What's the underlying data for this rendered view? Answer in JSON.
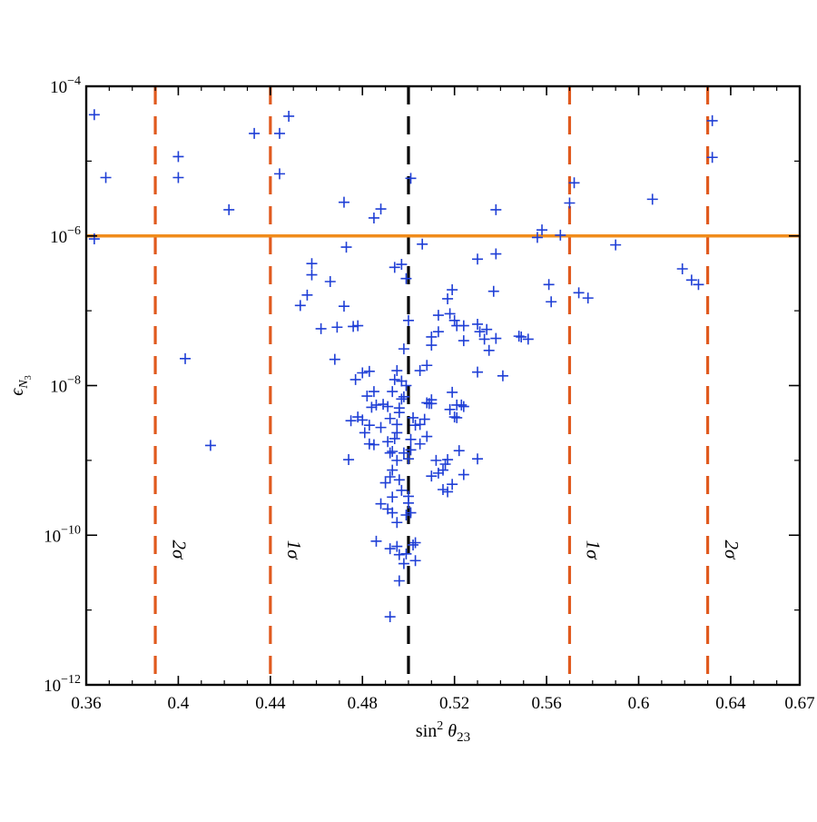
{
  "chart_data": {
    "type": "scatter",
    "title": "",
    "xlabel": "sin² θ23",
    "ylabel": "ϵN3",
    "x_scale": "linear",
    "y_scale": "log",
    "xlim": [
      0.36,
      0.67
    ],
    "ylim": [
      1e-12,
      0.0001
    ],
    "x_ticks": [
      {
        "value": 0.36,
        "label": "0.36"
      },
      {
        "value": 0.4,
        "label": "0.4"
      },
      {
        "value": 0.44,
        "label": "0.44"
      },
      {
        "value": 0.48,
        "label": "0.48"
      },
      {
        "value": 0.52,
        "label": "0.52"
      },
      {
        "value": 0.56,
        "label": "0.56"
      },
      {
        "value": 0.6,
        "label": "0.6"
      },
      {
        "value": 0.64,
        "label": "0.64"
      },
      {
        "value": 0.67,
        "label": "0.67"
      }
    ],
    "y_ticks": [
      {
        "exp": -12,
        "base": "10",
        "sup": "−12"
      },
      {
        "exp": -10,
        "base": "10",
        "sup": "−10"
      },
      {
        "exp": -8,
        "base": "10",
        "sup": "−8"
      },
      {
        "exp": -6,
        "base": "10",
        "sup": "−6"
      },
      {
        "exp": -4,
        "base": "10",
        "sup": "−4"
      }
    ],
    "grid": false,
    "colors": {
      "points": "#1f3fd6",
      "sigma_lines": "#e05a1e",
      "central_line": "#000000",
      "bound_line": "#f08c1c"
    },
    "horizontal_line": {
      "y": 1e-06,
      "style": "solid"
    },
    "vertical_lines": [
      {
        "x": 0.39,
        "label": "2σ",
        "style": "dashed",
        "kind": "sigma"
      },
      {
        "x": 0.44,
        "label": "1σ",
        "style": "dashed",
        "kind": "sigma"
      },
      {
        "x": 0.5,
        "label": "",
        "style": "dashed",
        "kind": "central"
      },
      {
        "x": 0.57,
        "label": "1σ",
        "style": "dashed",
        "kind": "sigma"
      },
      {
        "x": 0.63,
        "label": "2σ",
        "style": "dashed",
        "kind": "sigma"
      }
    ],
    "points": [
      [
        0.3635,
        -4.38
      ],
      [
        0.3685,
        -5.22
      ],
      [
        0.3635,
        -6.04
      ],
      [
        0.4,
        -4.94
      ],
      [
        0.4,
        -5.22
      ],
      [
        0.403,
        -7.64
      ],
      [
        0.414,
        -8.8
      ],
      [
        0.422,
        -5.65
      ],
      [
        0.433,
        -4.63
      ],
      [
        0.444,
        -4.63
      ],
      [
        0.448,
        -4.4
      ],
      [
        0.444,
        -5.17
      ],
      [
        0.453,
        -6.93
      ],
      [
        0.456,
        -6.79
      ],
      [
        0.458,
        -6.37
      ],
      [
        0.458,
        -6.52
      ],
      [
        0.462,
        -7.24
      ],
      [
        0.466,
        -6.61
      ],
      [
        0.469,
        -7.22
      ],
      [
        0.468,
        -7.65
      ],
      [
        0.472,
        -5.55
      ],
      [
        0.473,
        -6.15
      ],
      [
        0.472,
        -6.94
      ],
      [
        0.476,
        -7.21
      ],
      [
        0.478,
        -7.2
      ],
      [
        0.477,
        -7.92
      ],
      [
        0.48,
        -7.83
      ],
      [
        0.483,
        -7.81
      ],
      [
        0.482,
        -8.14
      ],
      [
        0.485,
        -8.08
      ],
      [
        0.484,
        -8.29
      ],
      [
        0.474,
        -8.99
      ],
      [
        0.478,
        -8.42
      ],
      [
        0.475,
        -8.47
      ],
      [
        0.48,
        -8.46
      ],
      [
        0.483,
        -8.78
      ],
      [
        0.485,
        -8.79
      ],
      [
        0.483,
        -8.53
      ],
      [
        0.486,
        -8.26
      ],
      [
        0.488,
        -8.56
      ],
      [
        0.489,
        -8.25
      ],
      [
        0.481,
        -8.63
      ],
      [
        0.485,
        -5.76
      ],
      [
        0.488,
        -5.64
      ],
      [
        0.494,
        -6.42
      ],
      [
        0.491,
        -8.75
      ],
      [
        0.492,
        -8.9
      ],
      [
        0.493,
        -8.88
      ],
      [
        0.494,
        -8.71
      ],
      [
        0.495,
        -8.52
      ],
      [
        0.496,
        -8.3
      ],
      [
        0.497,
        -8.18
      ],
      [
        0.498,
        -8.15
      ],
      [
        0.499,
        -8.0
      ],
      [
        0.497,
        -7.94
      ],
      [
        0.495,
        -7.8
      ],
      [
        0.494,
        -7.92
      ],
      [
        0.493,
        -8.08
      ],
      [
        0.491,
        -8.28
      ],
      [
        0.492,
        -8.44
      ],
      [
        0.496,
        -8.36
      ],
      [
        0.495,
        -8.63
      ],
      [
        0.498,
        -8.9
      ],
      [
        0.495,
        -9.0
      ],
      [
        0.493,
        -9.13
      ],
      [
        0.492,
        -9.22
      ],
      [
        0.49,
        -9.3
      ],
      [
        0.496,
        -9.26
      ],
      [
        0.497,
        -9.4
      ],
      [
        0.493,
        -9.49
      ],
      [
        0.493,
        -9.7
      ],
      [
        0.491,
        -9.65
      ],
      [
        0.488,
        -9.58
      ],
      [
        0.495,
        -9.83
      ],
      [
        0.496,
        -10.26
      ],
      [
        0.499,
        -9.73
      ],
      [
        0.501,
        -9.7
      ],
      [
        0.502,
        -10.13
      ],
      [
        0.499,
        -10.25
      ],
      [
        0.495,
        -10.15
      ],
      [
        0.492,
        -10.18
      ],
      [
        0.486,
        -10.08
      ],
      [
        0.498,
        -10.38
      ],
      [
        0.503,
        -10.1
      ],
      [
        0.503,
        -10.34
      ],
      [
        0.496,
        -10.61
      ],
      [
        0.492,
        -11.09
      ],
      [
        0.5,
        -9.57
      ],
      [
        0.5,
        -9.48
      ],
      [
        0.5,
        -8.98
      ],
      [
        0.501,
        -8.86
      ],
      [
        0.501,
        -8.72
      ],
      [
        0.503,
        -8.53
      ],
      [
        0.505,
        -8.78
      ],
      [
        0.502,
        -8.43
      ],
      [
        0.505,
        -8.52
      ],
      [
        0.508,
        -8.23
      ],
      [
        0.51,
        -8.19
      ],
      [
        0.509,
        -8.24
      ],
      [
        0.51,
        -8.24
      ],
      [
        0.507,
        -8.45
      ],
      [
        0.508,
        -8.68
      ],
      [
        0.512,
        -9.0
      ],
      [
        0.51,
        -9.21
      ],
      [
        0.513,
        -9.17
      ],
      [
        0.516,
        -9.05
      ],
      [
        0.517,
        -8.99
      ],
      [
        0.515,
        -9.13
      ],
      [
        0.515,
        -9.39
      ],
      [
        0.517,
        -9.42
      ],
      [
        0.519,
        -9.32
      ],
      [
        0.522,
        -8.87
      ],
      [
        0.521,
        -8.43
      ],
      [
        0.52,
        -8.42
      ],
      [
        0.518,
        -8.32
      ],
      [
        0.521,
        -8.26
      ],
      [
        0.523,
        -8.26
      ],
      [
        0.519,
        -8.09
      ],
      [
        0.524,
        -9.19
      ],
      [
        0.53,
        -8.98
      ],
      [
        0.524,
        -8.28
      ],
      [
        0.53,
        -7.82
      ],
      [
        0.535,
        -7.53
      ],
      [
        0.533,
        -7.38
      ],
      [
        0.53,
        -7.18
      ],
      [
        0.524,
        -7.2
      ],
      [
        0.521,
        -7.2
      ],
      [
        0.52,
        -7.13
      ],
      [
        0.518,
        -7.04
      ],
      [
        0.517,
        -6.84
      ],
      [
        0.513,
        -7.28
      ],
      [
        0.51,
        -7.46
      ],
      [
        0.51,
        -7.35
      ],
      [
        0.508,
        -7.73
      ],
      [
        0.505,
        -7.8
      ],
      [
        0.5,
        -7.13
      ],
      [
        0.498,
        -7.51
      ],
      [
        0.499,
        -6.57
      ],
      [
        0.497,
        -6.38
      ],
      [
        0.506,
        -6.11
      ],
      [
        0.513,
        -7.06
      ],
      [
        0.524,
        -7.4
      ],
      [
        0.531,
        -7.28
      ],
      [
        0.534,
        -7.25
      ],
      [
        0.538,
        -7.37
      ],
      [
        0.541,
        -7.87
      ],
      [
        0.519,
        -6.72
      ],
      [
        0.53,
        -6.31
      ],
      [
        0.538,
        -6.24
      ],
      [
        0.537,
        -6.74
      ],
      [
        0.538,
        -5.65
      ],
      [
        0.548,
        -7.34
      ],
      [
        0.549,
        -7.35
      ],
      [
        0.552,
        -7.38
      ],
      [
        0.556,
        -6.02
      ],
      [
        0.558,
        -5.92
      ],
      [
        0.566,
        -5.99
      ],
      [
        0.561,
        -6.65
      ],
      [
        0.562,
        -6.88
      ],
      [
        0.57,
        -5.56
      ],
      [
        0.572,
        -5.29
      ],
      [
        0.574,
        -6.76
      ],
      [
        0.578,
        -6.83
      ],
      [
        0.59,
        -6.12
      ],
      [
        0.606,
        -5.51
      ],
      [
        0.619,
        -6.44
      ],
      [
        0.623,
        -6.59
      ],
      [
        0.626,
        -6.65
      ],
      [
        0.632,
        -4.95
      ],
      [
        0.632,
        -4.46
      ],
      [
        0.501,
        -5.23
      ]
    ]
  }
}
